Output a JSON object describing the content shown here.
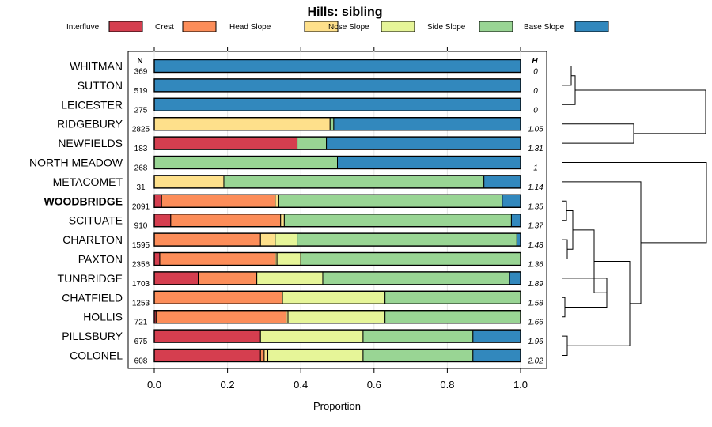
{
  "chart_data": {
    "type": "bar",
    "orientation": "horizontal",
    "stacked": true,
    "title": "Hills: sibling",
    "xlabel": "Proportion",
    "ylabel": "",
    "xlim": [
      0,
      1
    ],
    "x_ticks": [
      "0.0",
      "0.2",
      "0.4",
      "0.6",
      "0.8",
      "1.0"
    ],
    "n_header": "N",
    "h_header": "H",
    "legend": {
      "position": "top",
      "entries": [
        {
          "name": "Interfluve",
          "color": "#d53e4f"
        },
        {
          "name": "Crest",
          "color": "#fc8d59"
        },
        {
          "name": "Head Slope",
          "color": "#fee08b"
        },
        {
          "name": "Nose Slope",
          "color": "#e6f598"
        },
        {
          "name": "Side Slope",
          "color": "#99d594"
        },
        {
          "name": "Base Slope",
          "color": "#3288bd"
        }
      ]
    },
    "highlighted": "WOODBRIDGE",
    "categories": [
      "WHITMAN",
      "SUTTON",
      "LEICESTER",
      "RIDGEBURY",
      "NEWFIELDS",
      "NORTH MEADOW",
      "METACOMET",
      "WOODBRIDGE",
      "SCITUATE",
      "CHARLTON",
      "PAXTON",
      "TUNBRIDGE",
      "CHATFIELD",
      "HOLLIS",
      "PILLSBURY",
      "COLONEL"
    ],
    "n": [
      "369",
      "519",
      "275",
      "2825",
      "183",
      "268",
      "31",
      "2091",
      "910",
      "1595",
      "2356",
      "1703",
      "1253",
      "721",
      "675",
      "608"
    ],
    "h": [
      "0",
      "0",
      "0",
      "1.05",
      "1.31",
      "1",
      "1.14",
      "1.35",
      "1.37",
      "1.48",
      "1.36",
      "1.89",
      "1.58",
      "1.66",
      "1.96",
      "2.02"
    ],
    "series": [
      {
        "name": "Interfluve",
        "values": [
          0,
          0,
          0,
          0,
          0.39,
          0,
          0,
          0.02,
          0.045,
          0,
          0.015,
          0.12,
          0,
          0.005,
          0.29,
          0.29
        ]
      },
      {
        "name": "Crest",
        "values": [
          0,
          0,
          0,
          0,
          0,
          0,
          0,
          0.31,
          0.3,
          0.29,
          0.315,
          0.16,
          0.35,
          0.355,
          0,
          0.01
        ]
      },
      {
        "name": "Head Slope",
        "values": [
          0,
          0,
          0,
          0.48,
          0,
          0,
          0.19,
          0.01,
          0.01,
          0.04,
          0.005,
          0,
          0,
          0.005,
          0,
          0.01
        ]
      },
      {
        "name": "Nose Slope",
        "values": [
          0,
          0,
          0,
          0,
          0,
          0,
          0,
          0,
          0,
          0.06,
          0.065,
          0.18,
          0.28,
          0.265,
          0.28,
          0.26
        ]
      },
      {
        "name": "Side Slope",
        "values": [
          0,
          0,
          0,
          0.01,
          0.08,
          0.5,
          0.71,
          0.61,
          0.62,
          0.6,
          0.6,
          0.51,
          0.37,
          0.37,
          0.3,
          0.3
        ]
      },
      {
        "name": "Base Slope",
        "values": [
          1.0,
          1.0,
          1.0,
          0.51,
          0.53,
          0.5,
          0.1,
          0.05,
          0.025,
          0.01,
          0,
          0.03,
          0,
          0,
          0.13,
          0.13
        ]
      }
    ]
  }
}
